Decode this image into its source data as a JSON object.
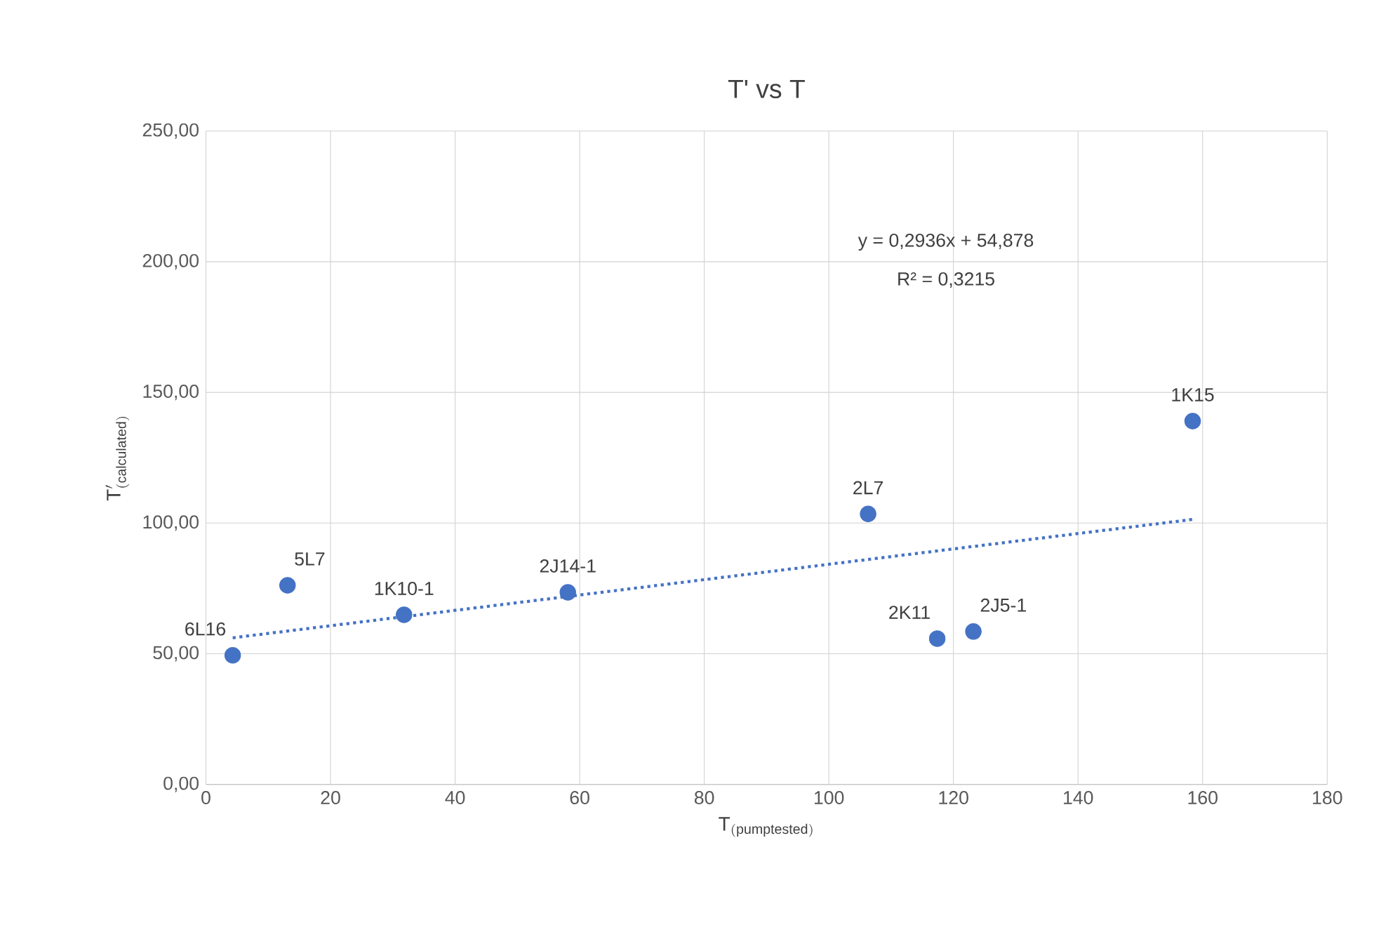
{
  "chart_data": {
    "type": "scatter",
    "title": "T' vs T",
    "xlabel": "\\mathrm{T}_{\\mathrm{(pumptested)}}",
    "ylabel": "\\mathrm{T}'_{\\mathrm{(calculated)}}",
    "xlim": [
      0,
      180
    ],
    "xticks": [
      0,
      20,
      40,
      60,
      80,
      100,
      120,
      140,
      160,
      180
    ],
    "ylim": [
      0,
      250
    ],
    "yticks": [
      {
        "value": 0,
        "label": "0,00"
      },
      {
        "value": 50,
        "label": "50,00"
      },
      {
        "value": 100,
        "label": "100,00"
      },
      {
        "value": 150,
        "label": "150,00"
      },
      {
        "value": 200,
        "label": "200,00"
      },
      {
        "value": 250,
        "label": "250,00"
      }
    ],
    "grid": true,
    "marker": "circle",
    "series": [
      {
        "color": "#4472c4",
        "x": [
          4.3,
          13.1,
          31.8,
          58.1,
          106.3,
          117.4,
          123.2,
          158.4
        ],
        "values": [
          49.4,
          76.2,
          64.9,
          73.5,
          103.5,
          55.8,
          58.5,
          139
        ]
      },
      {
        "type": "line",
        "color": "#4472c4",
        "line_style": "dotted",
        "marker": "none",
        "x": [
          4.3,
          158.4
        ],
        "values": [
          56.1,
          101.4
        ]
      }
    ],
    "annotations": [
      {
        "text": "6L16",
        "x": 4.3,
        "y": 49.4
      },
      {
        "text": "5L7",
        "x": 13.1,
        "y": 76.2
      },
      {
        "text": "1K10-1",
        "x": 31.8,
        "y": 64.9
      },
      {
        "text": "2J14-1",
        "x": 58.1,
        "y": 73.5
      },
      {
        "text": "2L7",
        "x": 106.3,
        "y": 103.5
      },
      {
        "text": "2K11",
        "x": 117.4,
        "y": 55.8
      },
      {
        "text": "2J5-1",
        "x": 123.2,
        "y": 58.5
      },
      {
        "text": "1K15",
        "x": 158.4,
        "y": 139
      },
      "y = 0,2936x + 54,878",
      "R² = 0,3215"
    ]
  }
}
